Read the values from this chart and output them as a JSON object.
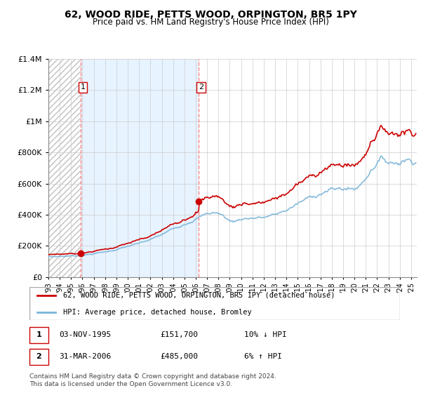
{
  "title": "62, WOOD RIDE, PETTS WOOD, ORPINGTON, BR5 1PY",
  "subtitle": "Price paid vs. HM Land Registry's House Price Index (HPI)",
  "ylim": [
    0,
    1400000
  ],
  "yticks": [
    0,
    200000,
    400000,
    600000,
    800000,
    1000000,
    1200000,
    1400000
  ],
  "ytick_labels": [
    "£0",
    "£200K",
    "£400K",
    "£600K",
    "£800K",
    "£1M",
    "£1.2M",
    "£1.4M"
  ],
  "hpi_color": "#7ab4d8",
  "price_color": "#cc0000",
  "sale1_x": 1995.83,
  "sale1_y": 151700,
  "sale1_label": "1",
  "sale2_x": 2006.25,
  "sale2_y": 485000,
  "sale2_label": "2",
  "legend_price_label": "62, WOOD RIDE, PETTS WOOD, ORPINGTON, BR5 1PY (detached house)",
  "legend_hpi_label": "HPI: Average price, detached house, Bromley",
  "table_rows": [
    {
      "num": "1",
      "date": "03-NOV-1995",
      "price": "£151,700",
      "hpi": "10% ↓ HPI"
    },
    {
      "num": "2",
      "date": "31-MAR-2006",
      "price": "£485,000",
      "hpi": "6% ↑ HPI"
    }
  ],
  "footnote": "Contains HM Land Registry data © Crown copyright and database right 2024.\nThis data is licensed under the Open Government Licence v3.0.",
  "vline1_x": 1995.83,
  "vline2_x": 2006.25,
  "xlim_left": 1993.0,
  "xlim_right": 2025.5
}
